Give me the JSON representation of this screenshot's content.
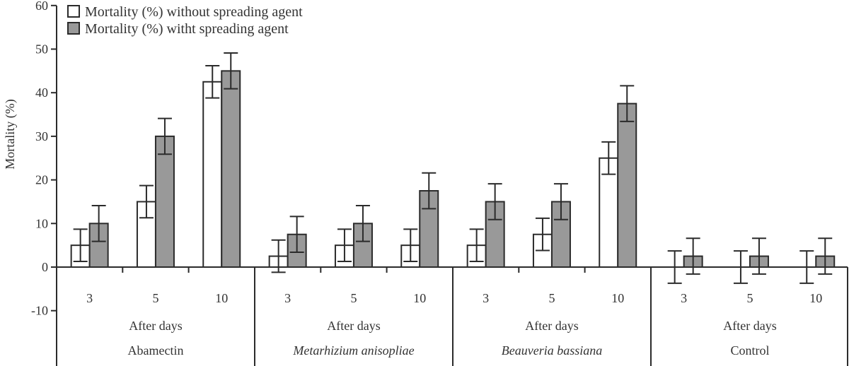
{
  "chart_data": {
    "type": "bar",
    "title": "",
    "xlabel": "After days",
    "ylabel": "Mortality (%)",
    "ylim": [
      -10,
      60
    ],
    "yticks": [
      -10,
      0,
      10,
      20,
      30,
      40,
      50,
      60
    ],
    "grid": false,
    "legend_position": "top-left",
    "groups": [
      {
        "name": "Abamectin",
        "italic": false,
        "days": [
          "3",
          "5",
          "10"
        ]
      },
      {
        "name": "Metarhizium anisopliae",
        "italic": true,
        "days": [
          "3",
          "5",
          "10"
        ]
      },
      {
        "name": "Beauveria bassiana",
        "italic": true,
        "days": [
          "3",
          "5",
          "10"
        ]
      },
      {
        "name": "Control",
        "italic": false,
        "days": [
          "3",
          "5",
          "10"
        ]
      }
    ],
    "categories": [
      "Abamectin 3",
      "Abamectin 5",
      "Abamectin 10",
      "Metarhizium anisopliae 3",
      "Metarhizium anisopliae 5",
      "Metarhizium anisopliae 10",
      "Beauveria bassiana 3",
      "Beauveria bassiana 5",
      "Beauveria bassiana 10",
      "Control 3",
      "Control 5",
      "Control 10"
    ],
    "series": [
      {
        "name": "Mortality (%) without spreading agent",
        "color": "#ffffff",
        "values": [
          5,
          15,
          42.5,
          2.5,
          5,
          5,
          5,
          7.5,
          25,
          0,
          0,
          0
        ],
        "errors": [
          3.7,
          3.7,
          3.7,
          3.7,
          3.7,
          3.7,
          3.7,
          3.7,
          3.7,
          3.7,
          3.7,
          3.7
        ]
      },
      {
        "name": "Mortality (%) witht spreading agent",
        "color": "#999999",
        "values": [
          10,
          30,
          45,
          7.5,
          10,
          17.5,
          15,
          15,
          37.5,
          2.5,
          2.5,
          2.5
        ],
        "errors": [
          4.1,
          4.1,
          4.1,
          4.1,
          4.1,
          4.1,
          4.1,
          4.1,
          4.1,
          4.1,
          4.1,
          4.1
        ]
      }
    ]
  },
  "labels": {
    "y_axis_title": "Mortality (%)",
    "after_days": "After days"
  }
}
